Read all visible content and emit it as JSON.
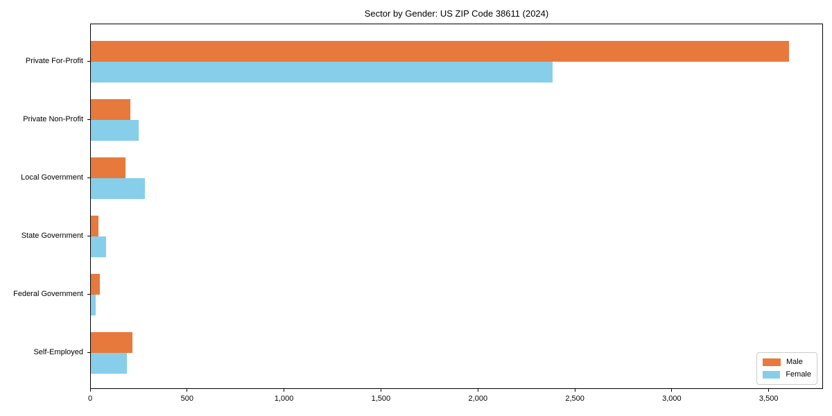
{
  "chart_data": {
    "type": "bar",
    "orientation": "horizontal",
    "title": "Sector by Gender: US ZIP Code 38611 (2024)",
    "categories": [
      "Private For-Profit",
      "Private Non-Profit",
      "Local Government",
      "State Government",
      "Federal Government",
      "Self-Employed"
    ],
    "series": [
      {
        "name": "Male",
        "color": "#e8793d",
        "values": [
          3600,
          205,
          180,
          40,
          45,
          215
        ]
      },
      {
        "name": "Female",
        "color": "#87ceeb",
        "values": [
          2380,
          245,
          280,
          80,
          25,
          185
        ]
      }
    ],
    "xlabel": "",
    "ylabel": "",
    "xlim": [
      0,
      3780
    ],
    "xticks": [
      0,
      500,
      1000,
      1500,
      2000,
      2500,
      3000,
      3500
    ],
    "xtick_labels": [
      "0",
      "500",
      "1,000",
      "1,500",
      "2,000",
      "2,500",
      "3,000",
      "3,500"
    ],
    "grid": false,
    "legend_position": "lower right",
    "background_color": "#ffffff",
    "spine_color": "#000000"
  }
}
